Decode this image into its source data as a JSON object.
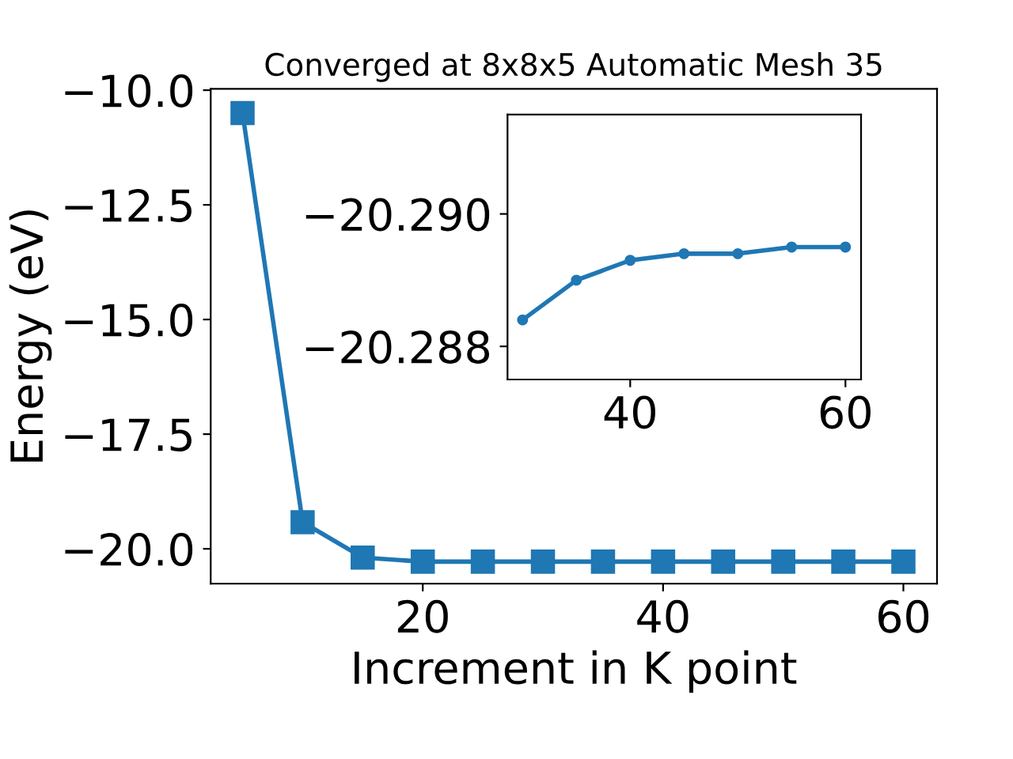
{
  "chart_data": [
    {
      "type": "line",
      "title": "Converged at 8x8x5 Automatic Mesh 35",
      "xlabel": "Increment in K point",
      "ylabel": "Energy (eV)",
      "x": [
        5,
        10,
        15,
        20,
        25,
        30,
        35,
        40,
        45,
        50,
        55,
        60
      ],
      "series": [
        {
          "color": "#1f77b4",
          "values": [
            -10.5,
            -19.42,
            -20.19,
            -20.28,
            -20.28,
            -20.28,
            -20.28,
            -20.28,
            -20.28,
            -20.28,
            -20.28,
            -20.28
          ]
        }
      ],
      "marker": "square",
      "xlim": [
        2.35,
        62.8
      ],
      "ylim": [
        -20.76,
        -9.97
      ],
      "xticks": [
        20,
        40,
        60
      ],
      "yticks": [
        {
          "value": -20,
          "label": "−20.0"
        },
        -17.5,
        {
          "value": -15,
          "label": "−15.0"
        },
        -12.5,
        {
          "value": -10,
          "label": "−10.0"
        }
      ],
      "grid": false
    },
    {
      "type": "line",
      "x": [
        30,
        35,
        40,
        45,
        50,
        55,
        60
      ],
      "series": [
        {
          "color": "#1f77b4",
          "values": [
            -20.2884,
            -20.289,
            -20.2893,
            -20.2894,
            -20.2894,
            -20.2895,
            -20.2895
          ]
        }
      ],
      "marker": "circle",
      "xlim": [
        28.6,
        61.45
      ],
      "ylim": [
        -20.2875,
        -20.2915
      ],
      "xticks": [
        40,
        60
      ],
      "yticks": [
        {
          "value": -20.29,
          "label": "−20.290"
        },
        -20.288
      ],
      "grid": false
    }
  ]
}
